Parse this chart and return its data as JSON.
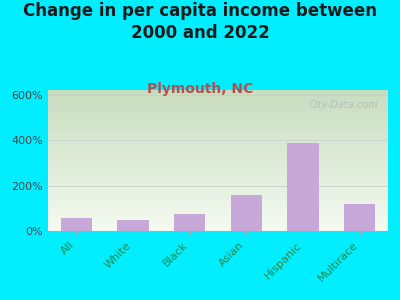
{
  "title": "Change in per capita income between\n2000 and 2022",
  "subtitle": "Plymouth, NC",
  "categories": [
    "All",
    "White",
    "Black",
    "Asian",
    "Hispanic",
    "Multirace"
  ],
  "values": [
    55,
    50,
    75,
    160,
    385,
    120
  ],
  "bar_color": "#c8a8d8",
  "title_fontsize": 12,
  "subtitle_fontsize": 10,
  "subtitle_color": "#b05050",
  "ytick_color": "#444444",
  "xtick_color": "#228844",
  "ylim": [
    0,
    620
  ],
  "yticks": [
    0,
    200,
    400,
    600
  ],
  "ytick_labels": [
    "0%",
    "200%",
    "400%",
    "600%"
  ],
  "background_outer": "#00eeff",
  "plot_bg_top_left": "#c8ddc0",
  "plot_bg_bottom_right": "#f4faf0",
  "watermark": "City-Data.com",
  "watermark_color": "#b0b8b8"
}
